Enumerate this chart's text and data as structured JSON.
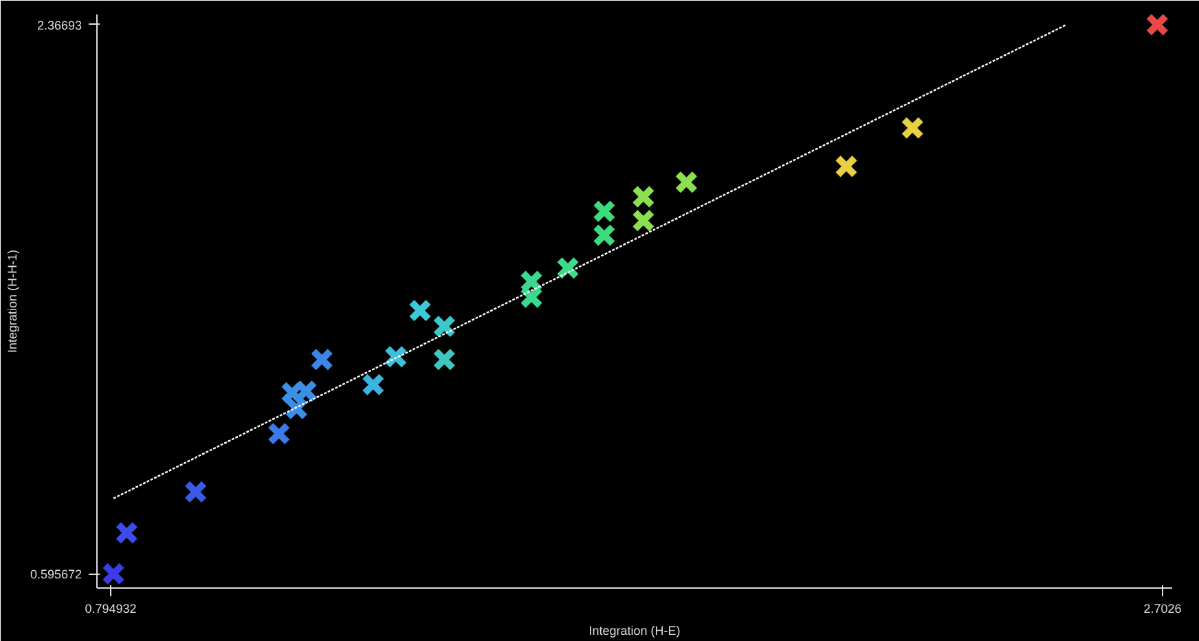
{
  "chart_data": {
    "type": "scatter",
    "xlabel": "Integration (H-E)",
    "ylabel": "Integration (H-H-1)",
    "xlim": [
      0.77,
      2.72
    ],
    "ylim": [
      0.55,
      2.4
    ],
    "xticks": [
      {
        "value": 0.794932,
        "label": "0.794932"
      },
      {
        "value": 2.7026,
        "label": "2.7026"
      }
    ],
    "yticks": [
      {
        "value": 0.595672,
        "label": "0.595672"
      },
      {
        "value": 2.36693,
        "label": "2.36693"
      }
    ],
    "grid": false,
    "marker": "cross",
    "series": [
      {
        "x": [
          0.8,
          0.824,
          0.949,
          1.1,
          1.124,
          1.136,
          1.149,
          1.132,
          1.178,
          1.271,
          1.312,
          1.356,
          1.4,
          1.4,
          1.558,
          1.558,
          1.624,
          1.69,
          1.69,
          1.761,
          1.761,
          1.839,
          2.129,
          2.249,
          2.693
        ],
        "values": [
          0.596,
          0.728,
          0.86,
          1.048,
          1.18,
          null,
          1.185,
          1.129,
          1.287,
          1.206,
          1.296,
          1.445,
          1.394,
          1.287,
          1.539,
          1.488,
          1.582,
          1.765,
          1.688,
          1.812,
          1.735,
          1.859,
          1.91,
          2.034,
          2.367
        ],
        "colors": [
          "#3c3ce6",
          "#3c4ce6",
          "#3c5ae6",
          "#3c7ae6",
          "#3c8ee6",
          "#3c8ee6",
          "#3c8ee6",
          "#3c8ee6",
          "#3c86e6",
          "#3cb4e0",
          "#3cc0dc",
          "#3cc8d8",
          "#3cc8c8",
          "#3cc8c0",
          "#3cd890",
          "#3cd890",
          "#3cdc88",
          "#3cdc7c",
          "#3cdc7c",
          "#8ce050",
          "#8ce050",
          "#8ce050",
          "#e8d040",
          "#e8d040",
          "#e84848"
        ]
      },
      {
        "type": "line",
        "color": "#ffffff",
        "line_style": "dotted",
        "marker": "none",
        "x": [
          0.8,
          2.527
        ],
        "values": [
          0.839,
          2.366
        ]
      }
    ]
  }
}
